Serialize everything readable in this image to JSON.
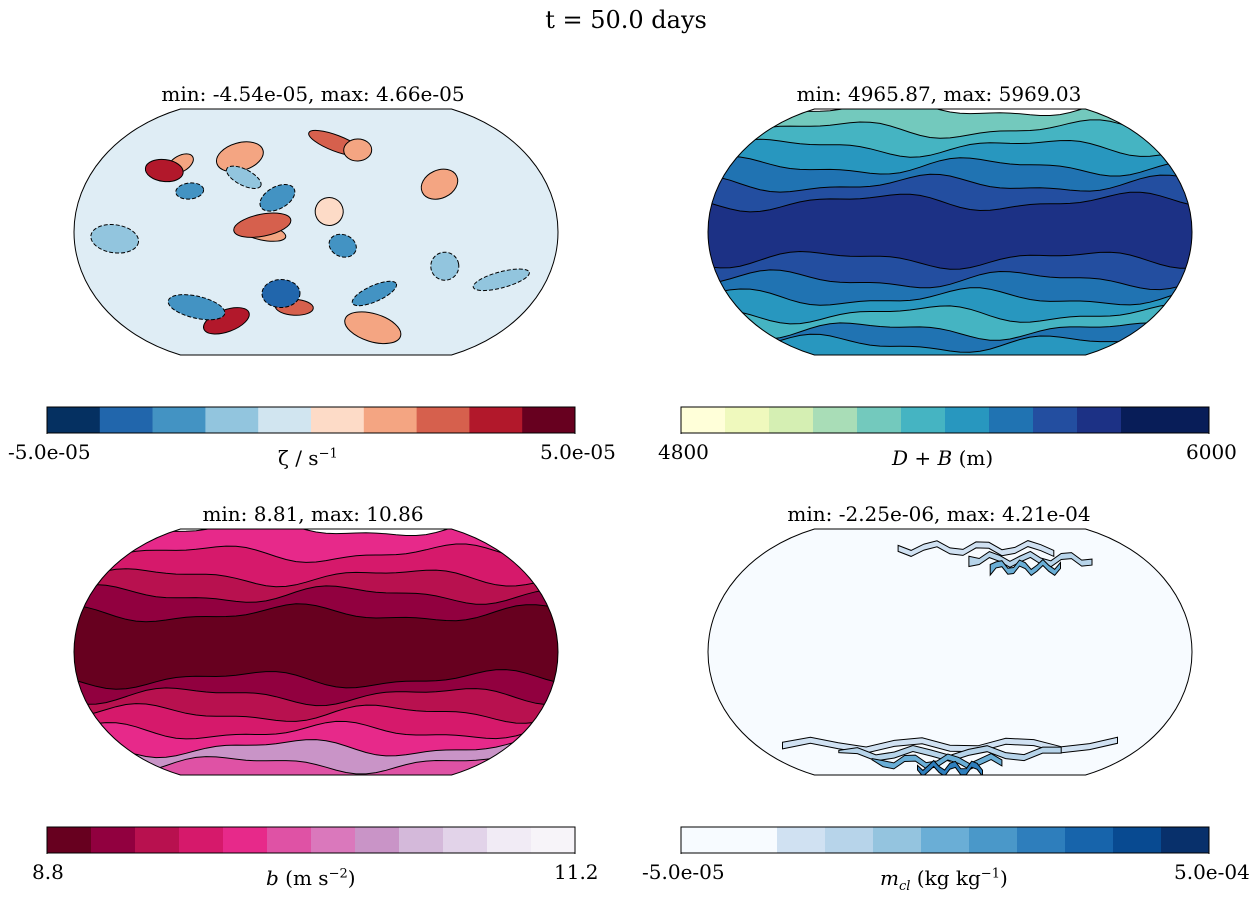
{
  "figure": {
    "title": "t = 50.0 days"
  },
  "chart_data": [
    {
      "type": "heatmap",
      "projection": "Robinson",
      "title": "min: -4.54e-05, max: 4.66e-05",
      "field_min": -4.54e-05,
      "field_max": 4.66e-05,
      "colorbar": {
        "min": -5e-05,
        "max": 5e-05,
        "tick_labels": [
          "-5.0e-05",
          "5.0e-05"
        ],
        "label_prefix": "ζ / s",
        "label_sup": "−1",
        "colors": [
          "#053061",
          "#2166ac",
          "#4393c3",
          "#92c5de",
          "#d1e5f0",
          "#fddbc7",
          "#f4a582",
          "#d6604d",
          "#b2182b",
          "#67001f"
        ],
        "levels": [
          -5e-05,
          -4e-05,
          -3e-05,
          -2e-05,
          -1e-05,
          0,
          1e-05,
          2e-05,
          3e-05,
          4e-05,
          5e-05
        ]
      },
      "map_background": "#dfedf5",
      "blobs": [
        {
          "lon": -120,
          "lat": 50,
          "level": 6
        },
        {
          "lon": -130,
          "lat": 45,
          "level": 8
        },
        {
          "lon": -70,
          "lat": 55,
          "level": 6
        },
        {
          "lon": 20,
          "lat": 65,
          "level": 7
        },
        {
          "lon": 40,
          "lat": 60,
          "level": 6
        },
        {
          "lon": 100,
          "lat": 35,
          "level": 6
        },
        {
          "lon": -40,
          "lat": 0,
          "level": 6
        },
        {
          "lon": -40,
          "lat": 5,
          "level": 7
        },
        {
          "lon": 10,
          "lat": 15,
          "level": 5
        },
        {
          "lon": -20,
          "lat": -55,
          "level": 7
        },
        {
          "lon": -90,
          "lat": -65,
          "level": 8
        },
        {
          "lon": 60,
          "lat": -70,
          "level": 6
        },
        {
          "lon": -100,
          "lat": 30,
          "level": 2
        },
        {
          "lon": -30,
          "lat": 25,
          "level": 2
        },
        {
          "lon": -150,
          "lat": -5,
          "level": 3
        },
        {
          "lon": 150,
          "lat": -35,
          "level": 3
        },
        {
          "lon": 20,
          "lat": -10,
          "level": 2
        },
        {
          "lon": -30,
          "lat": -45,
          "level": 1
        },
        {
          "lon": 50,
          "lat": -45,
          "level": 2
        },
        {
          "lon": -110,
          "lat": -55,
          "level": 2
        },
        {
          "lon": 100,
          "lat": -25,
          "level": 3
        },
        {
          "lon": -60,
          "lat": 40,
          "level": 3
        }
      ]
    },
    {
      "type": "heatmap",
      "projection": "Robinson",
      "title": "min: 4965.87, max: 5969.03",
      "field_min": 4965.87,
      "field_max": 5969.03,
      "colorbar": {
        "min": 4800,
        "max": 6000,
        "tick_labels": [
          "4800",
          "6000"
        ],
        "label_math": "D + B",
        "label_unit": "(m)",
        "colors": [
          "#ffffd9",
          "#eff9bd",
          "#d5efb3",
          "#a9ddb7",
          "#73c9bd",
          "#45b4c2",
          "#2897bf",
          "#2073b2",
          "#234ea0",
          "#1c3185",
          "#081d58",
          "#081d58"
        ],
        "levels": [
          4800,
          4900,
          5000,
          5100,
          5200,
          5300,
          5400,
          5500,
          5600,
          5700,
          5800,
          5900,
          6000
        ]
      },
      "bands": [
        {
          "lat": 90,
          "level": 4
        },
        {
          "lat": 75,
          "level": 5
        },
        {
          "lat": 62,
          "level": 6
        },
        {
          "lat": 48,
          "level": 7
        },
        {
          "lat": 35,
          "level": 8
        },
        {
          "lat": 22,
          "level": 9
        },
        {
          "lat": -20,
          "level": 8
        },
        {
          "lat": -35,
          "level": 7
        },
        {
          "lat": -48,
          "level": 6
        },
        {
          "lat": -60,
          "level": 5
        },
        {
          "lat": -72,
          "level": 7
        },
        {
          "lat": -82,
          "level": 6
        }
      ]
    },
    {
      "type": "heatmap",
      "projection": "Robinson",
      "title": "min: 8.81, max: 10.86",
      "field_min": 8.81,
      "field_max": 10.86,
      "colorbar": {
        "min": 8.8,
        "max": 11.2,
        "tick_labels": [
          "8.8",
          "11.2"
        ],
        "label_math": "b",
        "label_unit": "(m s",
        "label_sup": "−2",
        "label_close": ")",
        "colors": [
          "#67001f",
          "#91003f",
          "#b8114f",
          "#d6196b",
          "#e7298a",
          "#df52a5",
          "#da78bc",
          "#c994c7",
          "#d4b9da",
          "#e2d3e9",
          "#f1ebf5",
          "#f7f4f9"
        ],
        "levels": [
          8.8,
          9.0,
          9.2,
          9.4,
          9.6,
          9.8,
          10.0,
          10.2,
          10.4,
          10.6,
          10.8,
          11.0,
          11.2
        ]
      },
      "bands": [
        {
          "lat": 90,
          "level": 4
        },
        {
          "lat": 72,
          "level": 3
        },
        {
          "lat": 55,
          "level": 2
        },
        {
          "lat": 42,
          "level": 1
        },
        {
          "lat": 28,
          "level": 0
        },
        {
          "lat": -20,
          "level": 1
        },
        {
          "lat": -32,
          "level": 2
        },
        {
          "lat": -45,
          "level": 3
        },
        {
          "lat": -58,
          "level": 4
        },
        {
          "lat": -70,
          "level": 7
        },
        {
          "lat": -82,
          "level": 5
        }
      ]
    },
    {
      "type": "heatmap",
      "projection": "Robinson",
      "title": "min: -2.25e-06, max: 4.21e-04",
      "field_min": -2.25e-06,
      "field_max": 0.000421,
      "colorbar": {
        "min": -5e-05,
        "max": 0.0005,
        "tick_labels": [
          "-5.0e-05",
          "5.0e-04"
        ],
        "label_math": "m",
        "label_sub": "cl",
        "label_unit": "(kg kg",
        "label_sup": "−1",
        "label_close": ")",
        "colors": [
          "#f7fbff",
          "#f7fbff",
          "#d0e1f2",
          "#b7d4ea",
          "#94c4df",
          "#6aaed6",
          "#4a98c9",
          "#2e7ebc",
          "#1764ab",
          "#084a91",
          "#08306b"
        ],
        "levels": [
          -5e-05,
          0,
          5e-05,
          0.0001,
          0.00015,
          0.0002,
          0.00025,
          0.0003,
          0.00035,
          0.0004,
          0.00045,
          0.0005
        ]
      },
      "map_background": "#f7fbff"
    }
  ]
}
